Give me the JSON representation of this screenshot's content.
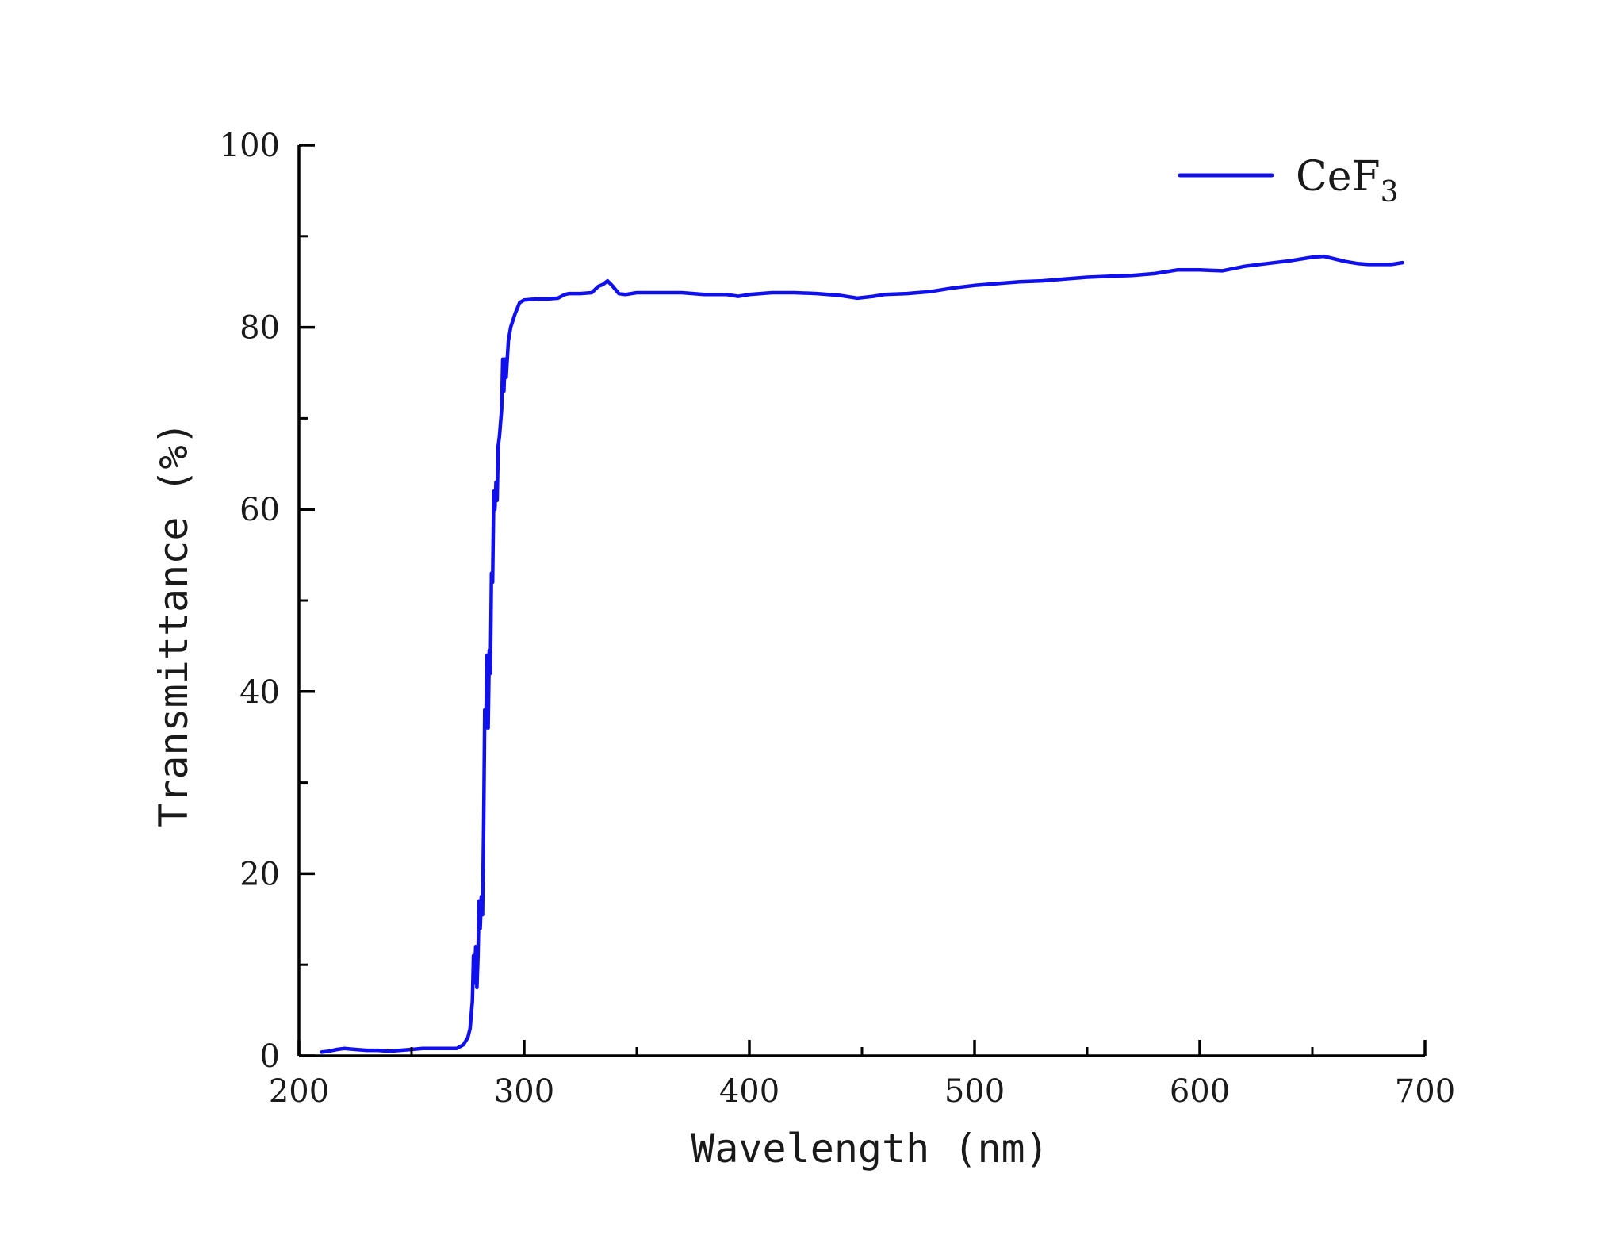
{
  "chart_data": {
    "type": "line",
    "title": "",
    "xlabel": "Wavelength (nm)",
    "ylabel": "Transmittance (%)",
    "xlim": [
      200,
      700
    ],
    "ylim": [
      0,
      100
    ],
    "x_ticks": [
      200,
      300,
      400,
      500,
      600,
      700
    ],
    "y_ticks": [
      0,
      20,
      40,
      60,
      80,
      100
    ],
    "x_tick_labels": [
      "200",
      "300",
      "400",
      "500",
      "600",
      "700"
    ],
    "y_tick_labels": [
      "0",
      "20",
      "40",
      "60",
      "80",
      "100"
    ],
    "grid": false,
    "legend": {
      "position": "top-right",
      "text": "CeF",
      "subscript": "3"
    },
    "series": [
      {
        "name": "CeF3",
        "color": "#1010ee",
        "points": [
          [
            210,
            0.4
          ],
          [
            213,
            0.5
          ],
          [
            217,
            0.7
          ],
          [
            220,
            0.8
          ],
          [
            225,
            0.7
          ],
          [
            230,
            0.6
          ],
          [
            235,
            0.6
          ],
          [
            240,
            0.5
          ],
          [
            245,
            0.6
          ],
          [
            250,
            0.7
          ],
          [
            255,
            0.8
          ],
          [
            260,
            0.8
          ],
          [
            265,
            0.8
          ],
          [
            270,
            0.8
          ],
          [
            273,
            1.2
          ],
          [
            275,
            2.0
          ],
          [
            276,
            3.0
          ],
          [
            277,
            6.0
          ],
          [
            277.5,
            11.0
          ],
          [
            278,
            8.0
          ],
          [
            278.5,
            12.0
          ],
          [
            279,
            7.5
          ],
          [
            279.5,
            11.0
          ],
          [
            280,
            17.0
          ],
          [
            280.5,
            14.0
          ],
          [
            281,
            17.5
          ],
          [
            281.5,
            15.5
          ],
          [
            282,
            25.0
          ],
          [
            282.5,
            38.0
          ],
          [
            283,
            36.0
          ],
          [
            283.5,
            44.0
          ],
          [
            284,
            36.0
          ],
          [
            284.5,
            44.5
          ],
          [
            285,
            42.0
          ],
          [
            285.5,
            53.0
          ],
          [
            286,
            52.0
          ],
          [
            286.5,
            62.0
          ],
          [
            287,
            60.0
          ],
          [
            287.5,
            63.0
          ],
          [
            288,
            61.0
          ],
          [
            288.5,
            67.0
          ],
          [
            289,
            68.0
          ],
          [
            290,
            71.0
          ],
          [
            290.5,
            76.5
          ],
          [
            291,
            73.0
          ],
          [
            291.5,
            76.5
          ],
          [
            292,
            74.5
          ],
          [
            293,
            78.5
          ],
          [
            294,
            80.0
          ],
          [
            296,
            81.5
          ],
          [
            298,
            82.7
          ],
          [
            300,
            83.0
          ],
          [
            305,
            83.1
          ],
          [
            310,
            83.1
          ],
          [
            315,
            83.2
          ],
          [
            318,
            83.6
          ],
          [
            320,
            83.7
          ],
          [
            325,
            83.7
          ],
          [
            330,
            83.8
          ],
          [
            333,
            84.5
          ],
          [
            335,
            84.7
          ],
          [
            337,
            85.1
          ],
          [
            339,
            84.6
          ],
          [
            342,
            83.7
          ],
          [
            345,
            83.6
          ],
          [
            350,
            83.8
          ],
          [
            360,
            83.8
          ],
          [
            370,
            83.8
          ],
          [
            380,
            83.6
          ],
          [
            390,
            83.6
          ],
          [
            395,
            83.4
          ],
          [
            400,
            83.6
          ],
          [
            410,
            83.8
          ],
          [
            420,
            83.8
          ],
          [
            430,
            83.7
          ],
          [
            440,
            83.5
          ],
          [
            448,
            83.2
          ],
          [
            455,
            83.4
          ],
          [
            460,
            83.6
          ],
          [
            470,
            83.7
          ],
          [
            480,
            83.9
          ],
          [
            490,
            84.3
          ],
          [
            500,
            84.6
          ],
          [
            510,
            84.8
          ],
          [
            520,
            85.0
          ],
          [
            530,
            85.1
          ],
          [
            540,
            85.3
          ],
          [
            550,
            85.5
          ],
          [
            560,
            85.6
          ],
          [
            570,
            85.7
          ],
          [
            580,
            85.9
          ],
          [
            590,
            86.3
          ],
          [
            600,
            86.3
          ],
          [
            610,
            86.2
          ],
          [
            620,
            86.7
          ],
          [
            630,
            87.0
          ],
          [
            640,
            87.3
          ],
          [
            650,
            87.7
          ],
          [
            655,
            87.8
          ],
          [
            660,
            87.5
          ],
          [
            665,
            87.2
          ],
          [
            670,
            87.0
          ],
          [
            675,
            86.9
          ],
          [
            680,
            86.9
          ],
          [
            685,
            86.9
          ],
          [
            690,
            87.1
          ]
        ]
      }
    ]
  }
}
